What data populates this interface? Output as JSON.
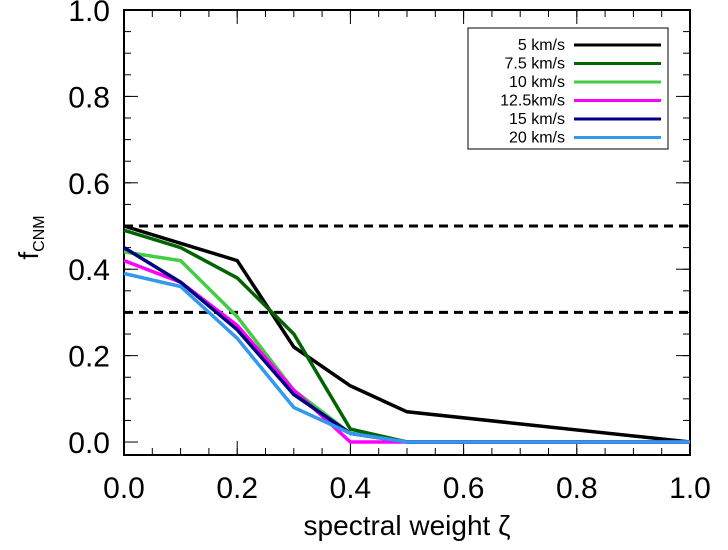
{
  "chart_data": {
    "type": "line",
    "xlabel": "spectral weight  ζ",
    "ylabel_main": "f",
    "ylabel_sub": "CNM",
    "xlim": [
      0.0,
      1.0
    ],
    "ylim": [
      -0.03,
      1.0
    ],
    "xticks": [
      "0.0",
      "0.2",
      "0.4",
      "0.6",
      "0.8",
      "1.0"
    ],
    "yticks": [
      "0.0",
      "0.2",
      "0.4",
      "0.6",
      "0.8",
      "1.0"
    ],
    "grid": false,
    "legend_position": "top-right",
    "reference_lines": [
      0.5,
      0.3
    ],
    "x": [
      0.0,
      0.1,
      0.2,
      0.3,
      0.4,
      0.5,
      1.0
    ],
    "series": [
      {
        "name": "5 km/s",
        "color": "#000000",
        "values": [
          0.5,
          0.46,
          0.42,
          0.22,
          0.13,
          0.07,
          0.0
        ]
      },
      {
        "name": "7.5 km/s",
        "color": "#006400",
        "values": [
          0.49,
          0.45,
          0.38,
          0.25,
          0.03,
          0.0,
          0.0
        ]
      },
      {
        "name": "10 km/s",
        "color": "#44cc44",
        "values": [
          0.44,
          0.42,
          0.29,
          0.12,
          0.02,
          0.0,
          0.0
        ]
      },
      {
        "name": "12.5km/s",
        "color": "#ff00ff",
        "values": [
          0.42,
          0.37,
          0.27,
          0.12,
          0.0,
          0.0,
          0.0
        ]
      },
      {
        "name": "15 km/s",
        "color": "#000080",
        "values": [
          0.45,
          0.37,
          0.26,
          0.11,
          0.02,
          0.0,
          0.0
        ]
      },
      {
        "name": "20 km/s",
        "color": "#3399ee",
        "values": [
          0.39,
          0.36,
          0.24,
          0.08,
          0.02,
          0.0,
          0.0
        ]
      }
    ]
  }
}
